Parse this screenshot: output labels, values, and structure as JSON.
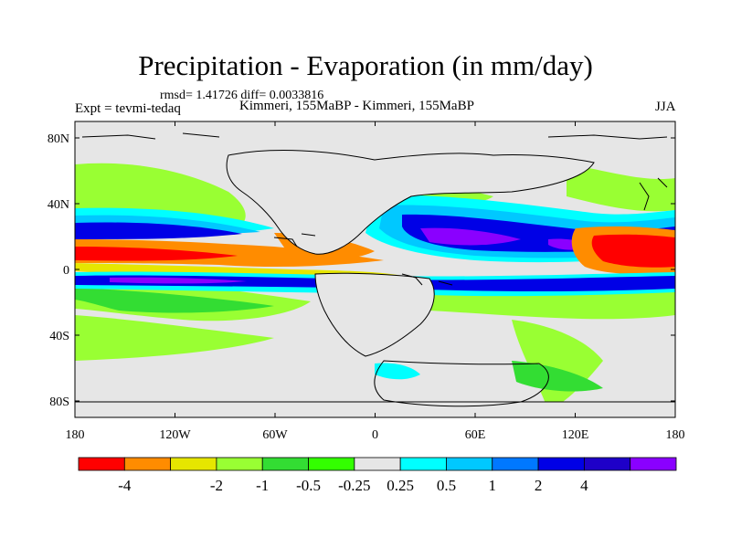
{
  "title": "Precipitation - Evaporation (in mm/day)",
  "stats": "rmsd= 1.41726 diff= 0.0033816",
  "experiment": "Expt = tevmi-tedaq",
  "comparison": "Kimmeri, 155MaBP - Kimmeri, 155MaBP",
  "season": "JJA",
  "map": {
    "lat_ticks": [
      "80N",
      "40N",
      "0",
      "40S",
      "80S"
    ],
    "lon_ticks": [
      "180",
      "120W",
      "60W",
      "0",
      "60E",
      "120E",
      "180"
    ],
    "lat_range": [
      -90,
      90
    ],
    "lon_range": [
      -180,
      180
    ]
  },
  "colorbar": {
    "colors": [
      "#ff0000",
      "#ff8c00",
      "#e6e600",
      "#99ff33",
      "#33dd33",
      "#33ff00",
      "#e6e6e6",
      "#00ffff",
      "#00c8ff",
      "#0078ff",
      "#0000e6",
      "#1e00c8",
      "#8a00ff"
    ],
    "labels": [
      "-4",
      "-2",
      "-1",
      "-0.5",
      "-0.25",
      "0.25",
      "0.5",
      "1",
      "2",
      "4"
    ]
  },
  "icons": {
    "land_color": "#e6e6e6",
    "coast_color": "#000000"
  }
}
